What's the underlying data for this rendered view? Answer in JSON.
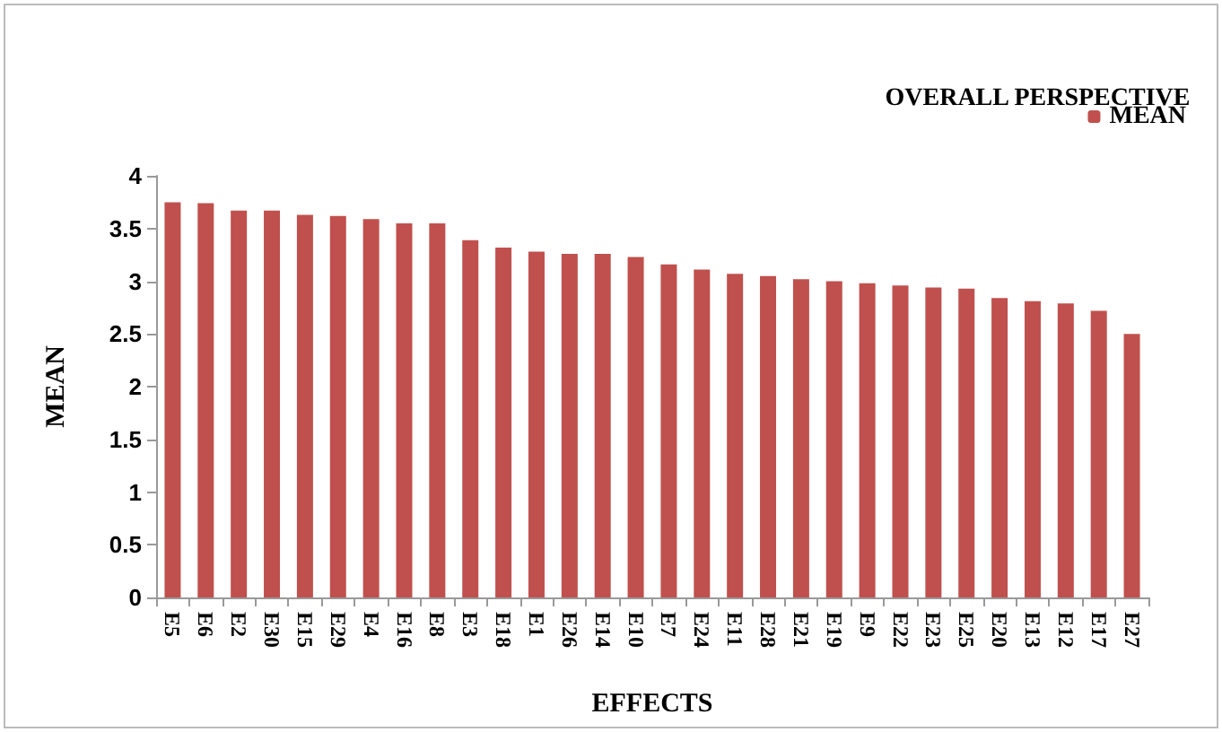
{
  "chart_data": {
    "type": "bar",
    "xlabel": "EFFECTS",
    "ylabel": "MEAN",
    "legend_title": "OVERALL PERSPECTIVE",
    "categories": [
      "E5",
      "E6",
      "E2",
      "E30",
      "E15",
      "E29",
      "E4",
      "E16",
      "E8",
      "E3",
      "E18",
      "E1",
      "E26",
      "E14",
      "E10",
      "E7",
      "E24",
      "E11",
      "E28",
      "E21",
      "E19",
      "E9",
      "E22",
      "E23",
      "E25",
      "E20",
      "E13",
      "E12",
      "E17",
      "E27"
    ],
    "series": [
      {
        "name": "MEAN",
        "color": "#c0504d",
        "values": [
          3.75,
          3.74,
          3.67,
          3.67,
          3.63,
          3.62,
          3.59,
          3.55,
          3.55,
          3.39,
          3.32,
          3.28,
          3.26,
          3.26,
          3.23,
          3.16,
          3.11,
          3.07,
          3.05,
          3.02,
          3.0,
          2.98,
          2.96,
          2.94,
          2.93,
          2.84,
          2.81,
          2.79,
          2.72,
          2.5
        ]
      }
    ],
    "ylim": [
      0,
      4
    ],
    "yticks": [
      0,
      0.5,
      1,
      1.5,
      2,
      2.5,
      3,
      3.5,
      4
    ],
    "grid": false,
    "legend": "top right"
  }
}
